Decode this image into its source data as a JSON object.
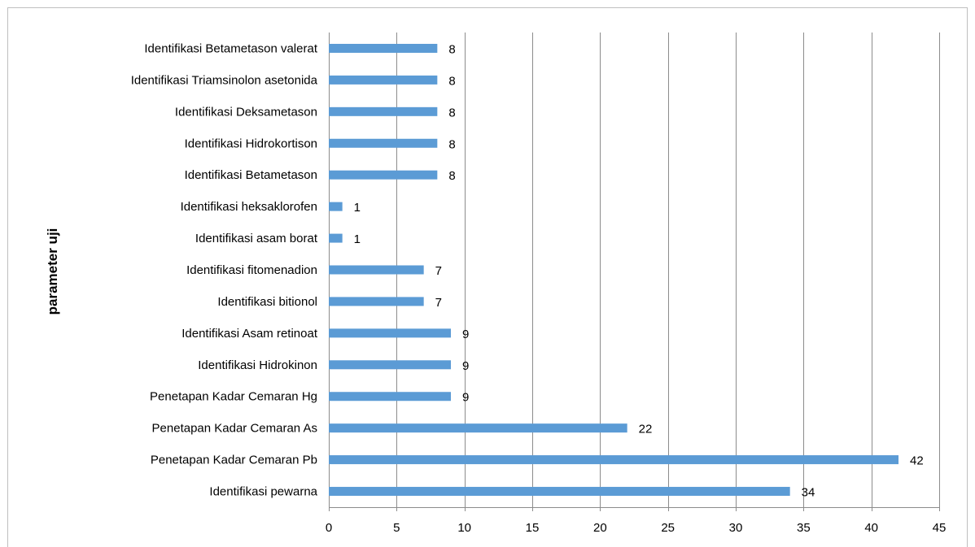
{
  "chart_data": {
    "type": "bar",
    "orientation": "horizontal",
    "categories": [
      "Identifikasi pewarna",
      "Penetapan Kadar Cemaran Pb",
      "Penetapan Kadar Cemaran As",
      "Penetapan Kadar Cemaran Hg",
      "Identifikasi Hidrokinon",
      "Identifikasi Asam retinoat",
      "Identifikasi bitionol",
      "Identifikasi fitomenadion",
      "Identifikasi asam borat",
      "Identifikasi heksaklorofen",
      "Identifikasi Betametason",
      "Identifikasi Hidrokortison",
      "Identifikasi Deksametason",
      "Identifikasi Triamsinolon asetonida",
      "Identifikasi Betametason valerat"
    ],
    "values": [
      34,
      42,
      22,
      9,
      9,
      9,
      7,
      7,
      1,
      1,
      8,
      8,
      8,
      8,
      8
    ],
    "title": "",
    "xlabel": "",
    "ylabel": "parameter uji",
    "xlim": [
      0,
      45
    ],
    "xticks": [
      0,
      5,
      10,
      15,
      20,
      25,
      30,
      35,
      40,
      45
    ],
    "grid": "vertical",
    "data_labels": true,
    "legend": "none",
    "bar_color": "#5b9bd5",
    "grid_color": "#8c8c8c"
  }
}
